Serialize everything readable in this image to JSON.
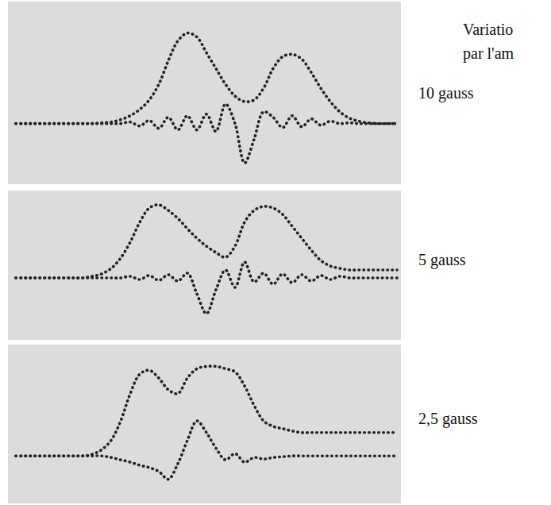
{
  "caption": [
    "Variatio",
    "par l'am"
  ],
  "chart_data": [
    {
      "type": "line",
      "title": "10 gauss",
      "tick_labels": false,
      "grid": false,
      "xlim": [
        0,
        100
      ],
      "ylim": [
        -77,
        155
      ],
      "x": [
        0,
        2.5,
        5,
        7.5,
        10,
        12.5,
        15,
        17.5,
        20,
        22.5,
        25,
        27.5,
        30,
        32.5,
        35,
        37.5,
        40,
        42.5,
        45,
        47.5,
        50,
        52.5,
        55,
        57.5,
        60,
        62.5,
        65,
        67.5,
        70,
        72.5,
        75,
        77.5,
        80,
        82.5,
        85,
        87.5,
        90,
        92.5,
        95,
        97.5,
        100
      ],
      "series": [
        {
          "color": "#222222",
          "line_style": "dotted",
          "values": [
            0,
            0,
            0,
            0,
            0,
            0,
            0,
            0,
            0,
            1,
            2,
            5,
            10,
            18,
            30,
            50,
            80,
            105,
            115,
            110,
            90,
            70,
            50,
            35,
            28,
            30,
            45,
            70,
            85,
            88,
            82,
            65,
            45,
            28,
            15,
            7,
            3,
            1,
            0,
            0,
            0
          ]
        },
        {
          "color": "#222222",
          "line_style": "dotted",
          "values": [
            0,
            0,
            0,
            0,
            0,
            0,
            0,
            0,
            0,
            0,
            0,
            0,
            2,
            -3,
            4,
            -6,
            8,
            -8,
            10,
            -8,
            12,
            -10,
            25,
            0,
            -50,
            -20,
            15,
            8,
            -5,
            10,
            -4,
            6,
            -2,
            3,
            0,
            1,
            0,
            0,
            0,
            0,
            0
          ]
        }
      ]
    },
    {
      "type": "line",
      "title": "5 gauss",
      "tick_labels": false,
      "grid": false,
      "xlim": [
        0,
        100
      ],
      "ylim": [
        -78,
        110
      ],
      "x": [
        0,
        2.5,
        5,
        7.5,
        10,
        12.5,
        15,
        17.5,
        20,
        22.5,
        25,
        27.5,
        30,
        32.5,
        35,
        37.5,
        40,
        42.5,
        45,
        47.5,
        50,
        52.5,
        55,
        57.5,
        60,
        62.5,
        65,
        67.5,
        70,
        72.5,
        75,
        77.5,
        80,
        82.5,
        85,
        87.5,
        90,
        92.5,
        95,
        97.5,
        100
      ],
      "series": [
        {
          "color": "#222222",
          "line_style": "dotted",
          "values": [
            0,
            0,
            0,
            0,
            0,
            0,
            0,
            0,
            2,
            5,
            12,
            25,
            45,
            70,
            88,
            92,
            85,
            75,
            62,
            50,
            40,
            32,
            26,
            40,
            70,
            85,
            90,
            88,
            80,
            65,
            50,
            35,
            22,
            15,
            12,
            10,
            10,
            10,
            10,
            10,
            10
          ]
        },
        {
          "color": "#222222",
          "line_style": "dotted",
          "values": [
            0,
            0,
            0,
            0,
            0,
            0,
            0,
            0,
            0,
            0,
            0,
            0,
            2,
            -2,
            3,
            -3,
            4,
            -4,
            6,
            -20,
            -45,
            -15,
            10,
            -12,
            20,
            -5,
            6,
            -8,
            5,
            -6,
            4,
            -4,
            3,
            -2,
            2,
            0,
            0,
            0,
            0,
            0,
            0
          ]
        }
      ]
    },
    {
      "type": "line",
      "title": "2,5 gauss",
      "tick_labels": false,
      "grid": false,
      "xlim": [
        0,
        100
      ],
      "ylim": [
        -61,
        143
      ],
      "x": [
        0,
        2.5,
        5,
        7.5,
        10,
        12.5,
        15,
        17.5,
        20,
        22.5,
        25,
        27.5,
        30,
        32.5,
        35,
        37.5,
        40,
        42.5,
        45,
        47.5,
        50,
        52.5,
        55,
        57.5,
        60,
        62.5,
        65,
        67.5,
        70,
        72.5,
        75,
        77.5,
        80,
        82.5,
        85,
        87.5,
        90,
        92.5,
        95,
        97.5,
        100
      ],
      "series": [
        {
          "color": "#222222",
          "line_style": "dotted",
          "values": [
            0,
            0,
            0,
            0,
            0,
            0,
            0,
            0,
            2,
            8,
            20,
            45,
            80,
            105,
            110,
            100,
            85,
            80,
            100,
            112,
            115,
            115,
            112,
            108,
            90,
            65,
            45,
            38,
            35,
            32,
            30,
            30,
            30,
            30,
            30,
            30,
            30,
            30,
            30,
            30,
            30
          ]
        },
        {
          "color": "#222222",
          "line_style": "dotted",
          "values": [
            0,
            0,
            0,
            0,
            0,
            0,
            0,
            0,
            0,
            0,
            -2,
            -5,
            -8,
            -12,
            -15,
            -20,
            -30,
            -10,
            20,
            45,
            30,
            10,
            -5,
            3,
            -8,
            -2,
            -4,
            -2,
            -1,
            0,
            0,
            0,
            0,
            0,
            0,
            0,
            0,
            0,
            0,
            0,
            0
          ]
        }
      ]
    }
  ]
}
